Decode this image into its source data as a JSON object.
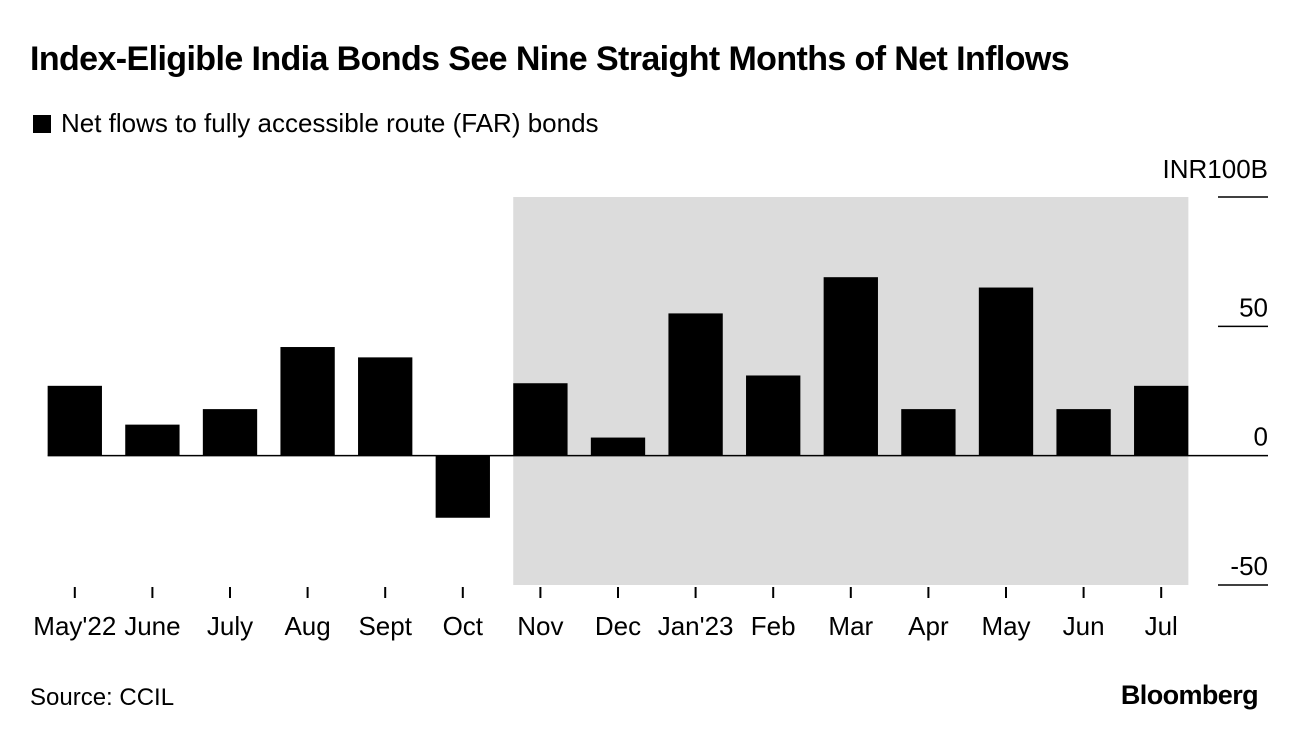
{
  "title": "Index-Eligible India Bonds See Nine Straight Months of Net Inflows",
  "legend": {
    "label": "Net flows to fully accessible route (FAR) bonds"
  },
  "unit_label": "INR100B",
  "source": "Source: CCIL",
  "brand": "Bloomberg",
  "colors": {
    "bar": "#000000",
    "highlight": "#dcdcdc",
    "axis": "#000000"
  },
  "chart_data": {
    "type": "bar",
    "title": "Index-Eligible India Bonds See Nine Straight Months of Net Inflows",
    "xlabel": "",
    "ylabel": "INR100B",
    "categories": [
      "May'22",
      "June",
      "July",
      "Aug",
      "Sept",
      "Oct",
      "Nov",
      "Dec",
      "Jan'23",
      "Feb",
      "Mar",
      "Apr",
      "May",
      "Jun",
      "Jul"
    ],
    "series": [
      {
        "name": "Net flows to fully accessible route (FAR) bonds",
        "values": [
          27,
          12,
          18,
          42,
          38,
          -24,
          28,
          7,
          55,
          31,
          69,
          18,
          65,
          18,
          27
        ]
      }
    ],
    "ylim": [
      -50,
      100
    ],
    "yticks": [
      -50,
      0,
      50,
      100
    ],
    "ytick_labels": [
      "-50",
      "0",
      "50",
      ""
    ],
    "highlight_range": [
      "Nov",
      "Jul"
    ],
    "legend_position": "top-left",
    "grid": false
  }
}
